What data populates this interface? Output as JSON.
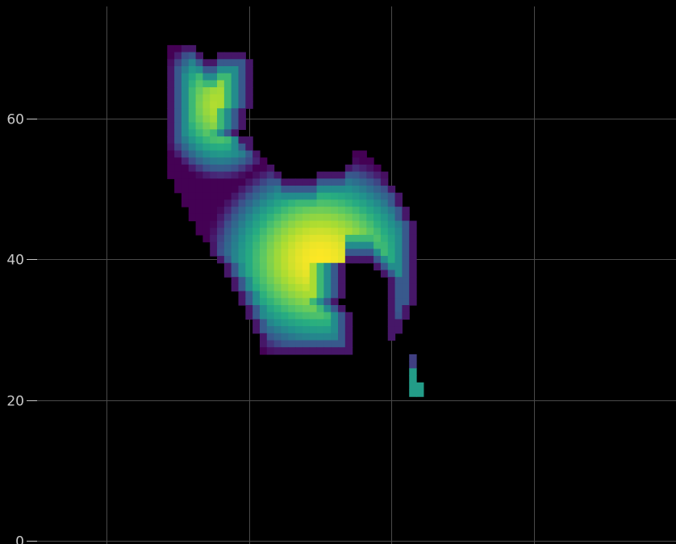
{
  "chart_data": {
    "type": "heatmap",
    "title": "",
    "xlabel": "",
    "ylabel": "",
    "colormap": "viridis",
    "background_color": "#000000",
    "grid": true,
    "grid_color": "#4a4a4a",
    "tick_color": "#c8c8c8",
    "y_ticks": [
      0,
      20,
      40,
      60
    ],
    "y_tick_labels": [
      "0",
      "20",
      "40",
      "60"
    ],
    "x_gridlines": [
      -20,
      0,
      20,
      40
    ],
    "xlim": [
      -35,
      60
    ],
    "ylim": [
      -0.5,
      76
    ],
    "cell_size": 1,
    "value_range": [
      0,
      1
    ],
    "blob": {
      "body_peak": [
        10,
        40
      ],
      "head_peak": [
        -4,
        62
      ],
      "rows": [
        {
          "y": 70,
          "segs": [
            [
              -11,
              -8
            ]
          ]
        },
        {
          "y": 69,
          "segs": [
            [
              -11,
              -7
            ],
            [
              -4,
              -1
            ]
          ]
        },
        {
          "y": 68,
          "segs": [
            [
              -11,
              0
            ]
          ]
        },
        {
          "y": 67,
          "segs": [
            [
              -11,
              0
            ]
          ]
        },
        {
          "y": 66,
          "segs": [
            [
              -11,
              0
            ]
          ]
        },
        {
          "y": 65,
          "segs": [
            [
              -11,
              0
            ]
          ]
        },
        {
          "y": 64,
          "segs": [
            [
              -11,
              0
            ]
          ]
        },
        {
          "y": 63,
          "segs": [
            [
              -11,
              0
            ]
          ]
        },
        {
          "y": 62,
          "segs": [
            [
              -11,
              0
            ]
          ]
        },
        {
          "y": 61,
          "segs": [
            [
              -11,
              -1
            ]
          ]
        },
        {
          "y": 60,
          "segs": [
            [
              -11,
              -1
            ]
          ]
        },
        {
          "y": 59,
          "segs": [
            [
              -11,
              -1
            ]
          ]
        },
        {
          "y": 58,
          "segs": [
            [
              -11,
              -2
            ]
          ]
        },
        {
          "y": 57,
          "segs": [
            [
              -11,
              0
            ]
          ]
        },
        {
          "y": 56,
          "segs": [
            [
              -11,
              0
            ]
          ]
        },
        {
          "y": 55,
          "segs": [
            [
              -11,
              1
            ],
            [
              15,
              16
            ]
          ]
        },
        {
          "y": 54,
          "segs": [
            [
              -11,
              2
            ],
            [
              15,
              17
            ]
          ]
        },
        {
          "y": 53,
          "segs": [
            [
              -11,
              3
            ],
            [
              14,
              18
            ]
          ]
        },
        {
          "y": 52,
          "segs": [
            [
              -11,
              4
            ],
            [
              10,
              19
            ]
          ]
        },
        {
          "y": 51,
          "segs": [
            [
              -10,
              19
            ]
          ]
        },
        {
          "y": 50,
          "segs": [
            [
              -10,
              20
            ]
          ]
        },
        {
          "y": 49,
          "segs": [
            [
              -9,
              21
            ]
          ]
        },
        {
          "y": 48,
          "segs": [
            [
              -9,
              21
            ]
          ]
        },
        {
          "y": 47,
          "segs": [
            [
              -8,
              22
            ]
          ]
        },
        {
          "y": 46,
          "segs": [
            [
              -8,
              22
            ]
          ]
        },
        {
          "y": 45,
          "segs": [
            [
              -7,
              23
            ]
          ]
        },
        {
          "y": 44,
          "segs": [
            [
              -7,
              23
            ]
          ]
        },
        {
          "y": 43,
          "segs": [
            [
              -6,
              23
            ]
          ]
        },
        {
          "y": 42,
          "segs": [
            [
              -5,
              23
            ]
          ]
        },
        {
          "y": 41,
          "segs": [
            [
              -5,
              23
            ]
          ]
        },
        {
          "y": 40,
          "segs": [
            [
              -4,
              23
            ]
          ]
        },
        {
          "y": 39,
          "segs": [
            [
              -3,
              13
            ],
            [
              18,
              23
            ]
          ]
        },
        {
          "y": 38,
          "segs": [
            [
              -3,
              13
            ],
            [
              19,
              23
            ]
          ]
        },
        {
          "y": 37,
          "segs": [
            [
              -2,
              13
            ],
            [
              20,
              23
            ]
          ]
        },
        {
          "y": 36,
          "segs": [
            [
              -2,
              13
            ],
            [
              20,
              23
            ]
          ]
        },
        {
          "y": 35,
          "segs": [
            [
              -1,
              13
            ],
            [
              20,
              23
            ]
          ]
        },
        {
          "y": 34,
          "segs": [
            [
              -1,
              12
            ],
            [
              20,
              23
            ]
          ]
        },
        {
          "y": 33,
          "segs": [
            [
              0,
              13
            ],
            [
              20,
              22
            ]
          ]
        },
        {
          "y": 32,
          "segs": [
            [
              0,
              14
            ],
            [
              20,
              22
            ]
          ]
        },
        {
          "y": 31,
          "segs": [
            [
              1,
              14
            ],
            [
              20,
              21
            ]
          ]
        },
        {
          "y": 30,
          "segs": [
            [
              1,
              14
            ],
            [
              20,
              21
            ]
          ]
        },
        {
          "y": 29,
          "segs": [
            [
              2,
              14
            ],
            [
              20,
              20
            ]
          ]
        },
        {
          "y": 28,
          "segs": [
            [
              2,
              14
            ]
          ]
        },
        {
          "y": 27,
          "segs": [
            [
              2,
              14
            ]
          ]
        },
        {
          "y": 26,
          "segs": [
            [
              23,
              23
            ]
          ]
        },
        {
          "y": 25,
          "segs": [
            [
              23,
              23
            ]
          ]
        },
        {
          "y": 24,
          "segs": [
            [
              23,
              23
            ]
          ]
        },
        {
          "y": 23,
          "segs": [
            [
              23,
              23
            ]
          ]
        },
        {
          "y": 22,
          "segs": [
            [
              23,
              24
            ]
          ]
        },
        {
          "y": 21,
          "segs": [
            [
              23,
              24
            ]
          ]
        }
      ]
    }
  }
}
